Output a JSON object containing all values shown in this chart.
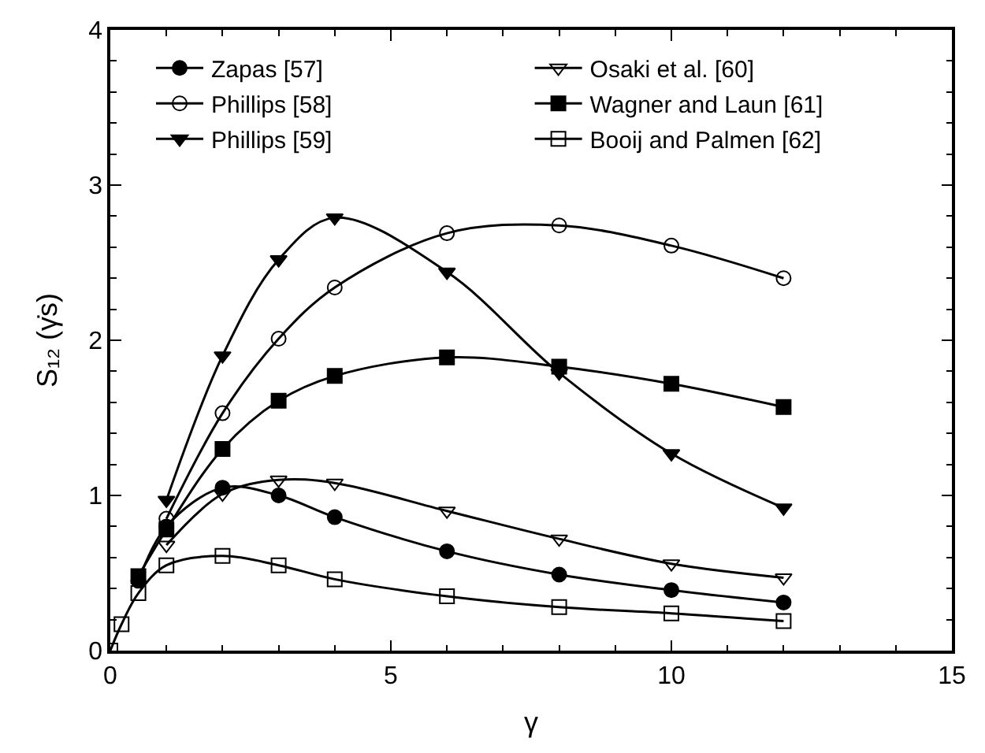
{
  "chart_data": {
    "type": "line",
    "xlabel": "γ",
    "ylabel": "S₁₂ (γ̇s)",
    "xlim": [
      0,
      15
    ],
    "xticks": [
      0,
      5,
      10,
      15
    ],
    "ylim": [
      0,
      4
    ],
    "yticks": [
      0,
      1,
      2,
      3,
      4
    ],
    "legend": "top",
    "series": [
      {
        "name": "Zapas [57]",
        "color": "#000000",
        "marker": "circle",
        "x": [
          0.5,
          1,
          2,
          3,
          4,
          6,
          8,
          10,
          12
        ],
        "values": [
          0.45,
          0.8,
          1.05,
          1.0,
          0.86,
          0.64,
          0.49,
          0.39,
          0.31
        ]
      },
      {
        "name": "Osaki et al. [60]",
        "color": "#000000",
        "marker": "triangle-down-open",
        "x": [
          1,
          2,
          3,
          4,
          6,
          8,
          10,
          12
        ],
        "values": [
          0.68,
          1.01,
          1.1,
          1.08,
          0.9,
          0.72,
          0.56,
          0.47
        ]
      },
      {
        "name": "Phillips [58]",
        "color": "#000000",
        "marker": "circle-open",
        "x": [
          1,
          2,
          3,
          4,
          6,
          8,
          10,
          12
        ],
        "values": [
          0.85,
          1.53,
          2.01,
          2.34,
          2.69,
          2.74,
          2.61,
          2.4
        ]
      },
      {
        "name": "Wagner and Laun [61]",
        "color": "#000000",
        "marker": "square",
        "x": [
          0.5,
          1,
          2,
          3,
          4,
          6,
          8,
          10,
          12
        ],
        "values": [
          0.48,
          0.78,
          1.3,
          1.61,
          1.77,
          1.89,
          1.83,
          1.72,
          1.57
        ]
      },
      {
        "name": "Phillips [59]",
        "color": "#000000",
        "marker": "triangle-down",
        "x": [
          1,
          2,
          3,
          4,
          6,
          8,
          10,
          12
        ],
        "values": [
          0.97,
          1.9,
          2.52,
          2.79,
          2.44,
          1.79,
          1.27,
          0.92
        ]
      },
      {
        "name": "Booij and Palmen [62]",
        "color": "#000000",
        "marker": "square-open",
        "x": [
          0,
          0.2,
          0.5,
          1,
          2,
          3,
          4,
          6,
          8,
          10,
          12
        ],
        "values": [
          0,
          0.17,
          0.37,
          0.55,
          0.61,
          0.55,
          0.46,
          0.35,
          0.28,
          0.24,
          0.19
        ]
      }
    ]
  }
}
